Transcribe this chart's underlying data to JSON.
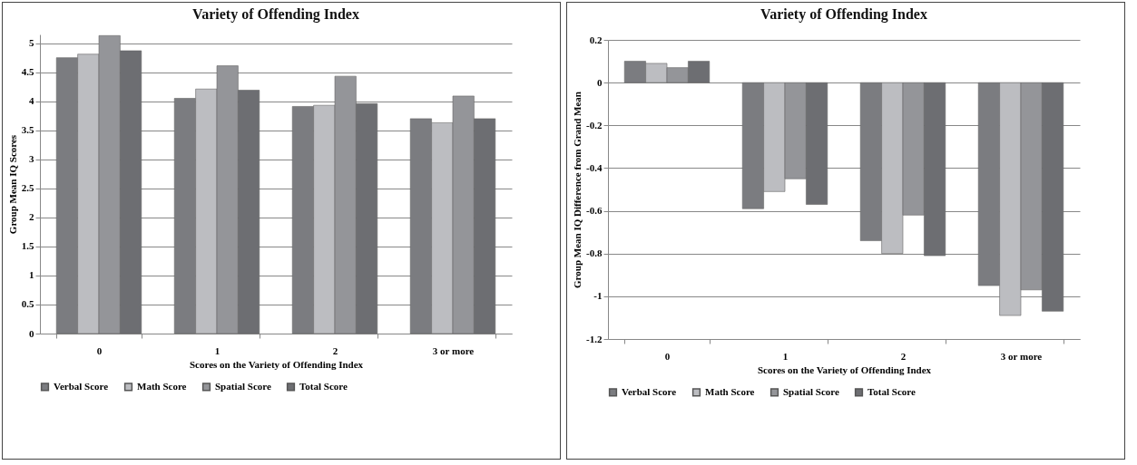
{
  "chart_data": [
    {
      "type": "bar",
      "title": "Variety of Offending Index",
      "xlabel": "Scores on the Variety of Offending Index",
      "ylabel": "Group Mean IQ Scores",
      "categories": [
        "0",
        "1",
        "2",
        "3 or more"
      ],
      "series": [
        {
          "name": "Verbal Score",
          "color": "#7b7c80",
          "values": [
            4.75,
            4.05,
            3.91,
            3.7
          ]
        },
        {
          "name": "Math Score",
          "color": "#bcbdc1",
          "values": [
            4.81,
            4.21,
            3.93,
            3.63
          ]
        },
        {
          "name": "Spatial Score",
          "color": "#949599",
          "values": [
            5.13,
            4.61,
            4.43,
            4.09
          ]
        },
        {
          "name": "Total Score",
          "color": "#6d6e72",
          "values": [
            4.87,
            4.19,
            3.96,
            3.7
          ]
        }
      ],
      "ylim": [
        0,
        5.15
      ],
      "yticks": [
        0,
        0.5,
        1,
        1.5,
        2,
        2.5,
        3,
        3.5,
        4,
        4.5,
        5
      ],
      "grid": "y",
      "legend": "bottom"
    },
    {
      "type": "bar",
      "title": "Variety of Offending Index",
      "xlabel": "Scores on the Variety of Offending Index",
      "ylabel": "Group Mean IQ Difference from Grand Mean",
      "categories": [
        "0",
        "1",
        "2",
        "3 or more"
      ],
      "series": [
        {
          "name": "Verbal Score",
          "color": "#7b7c80",
          "values": [
            0.1,
            -0.59,
            -0.74,
            -0.95
          ]
        },
        {
          "name": "Math Score",
          "color": "#bcbdc1",
          "values": [
            0.09,
            -0.51,
            -0.8,
            -1.09
          ]
        },
        {
          "name": "Spatial Score",
          "color": "#949599",
          "values": [
            0.07,
            -0.45,
            -0.62,
            -0.97
          ]
        },
        {
          "name": "Total Score",
          "color": "#6d6e72",
          "values": [
            0.1,
            -0.57,
            -0.81,
            -1.07
          ]
        }
      ],
      "ylim": [
        -1.2,
        0.2
      ],
      "yticks": [
        -1.2,
        -1,
        -0.8,
        -0.6,
        -0.4,
        -0.2,
        0,
        0.2
      ],
      "grid": "y",
      "legend": "bottom"
    }
  ]
}
